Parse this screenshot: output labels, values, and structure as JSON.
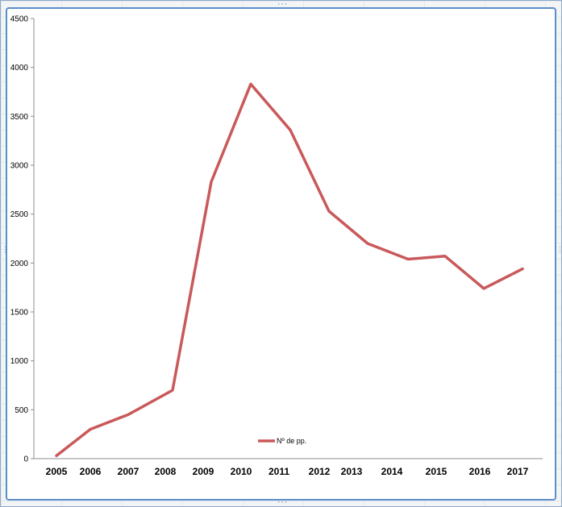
{
  "chart_data": {
    "type": "line",
    "categories": [
      "2005",
      "2006",
      "2007",
      "2008",
      "2009",
      "2010",
      "2011",
      "2012",
      "2013",
      "2014",
      "2015",
      "2016",
      "2017"
    ],
    "series": [
      {
        "name": "Nº de pp.",
        "values": [
          30,
          300,
          450,
          700,
          2830,
          3830,
          3360,
          2530,
          2200,
          2040,
          2070,
          1740,
          1940
        ],
        "color": "#c9595a"
      }
    ],
    "ylim": [
      0,
      4500
    ],
    "yticks": [
      0,
      500,
      1000,
      1500,
      2000,
      2500,
      3000,
      3500,
      4000,
      4500
    ],
    "grid": false,
    "legend_position": "bottom-center",
    "title": "",
    "xlabel": "",
    "ylabel": ""
  }
}
